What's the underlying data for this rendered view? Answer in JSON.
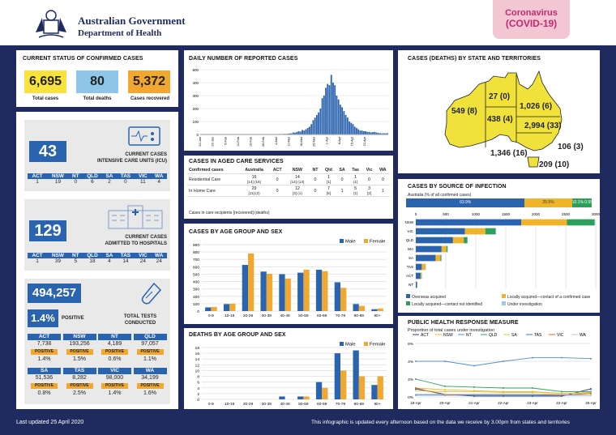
{
  "header": {
    "gov_line1": "Australian Government",
    "gov_line2": "Department of Health",
    "badge_line1": "Coronavirus",
    "badge_line2": "(COVID-19)"
  },
  "status": {
    "title": "CURRENT STATUS OF CONFIRMED CASES",
    "total_cases": "6,695",
    "total_cases_label": "Total cases",
    "total_deaths": "80",
    "total_deaths_label": "Total deaths",
    "recovered": "5,372",
    "recovered_label": "Cases recovered"
  },
  "icu": {
    "value": "43",
    "label_1": "CURRENT CASES",
    "label_2": "INTENSIVE CARE UNITS (ICU)",
    "states": [
      "ACT",
      "NSW",
      "NT",
      "QLD",
      "SA",
      "TAS",
      "VIC",
      "WA"
    ],
    "values": [
      "1",
      "19",
      "0",
      "6",
      "2",
      "0",
      "11",
      "4"
    ]
  },
  "hosp": {
    "value": "129",
    "label_1": "CURRENT CASES",
    "label_2": "ADMITTED TO HOSPITALS",
    "states": [
      "ACT",
      "NSW",
      "NT",
      "QLD",
      "SA",
      "TAS",
      "VIC",
      "WA"
    ],
    "values": [
      "1",
      "39",
      "5",
      "18",
      "4",
      "14",
      "24",
      "24"
    ]
  },
  "tests": {
    "value": "494,257",
    "positive_pct": "1.4%",
    "positive_label": "POSITIVE",
    "label_1": "TOTAL TESTS",
    "label_2": "CONDUCTED",
    "positive_tag": "POSITIVE",
    "row1": [
      {
        "state": "ACT",
        "tests": "7,738",
        "pct": "1.4%"
      },
      {
        "state": "NSW",
        "tests": "193,256",
        "pct": "1.5%"
      },
      {
        "state": "NT",
        "tests": "4,189",
        "pct": "0.6%"
      },
      {
        "state": "QLD",
        "tests": "97,057",
        "pct": "1.1%"
      }
    ],
    "row2": [
      {
        "state": "SA",
        "tests": "51,536",
        "pct": "0.8%"
      },
      {
        "state": "TAS",
        "tests": "8,282",
        "pct": "2.5%"
      },
      {
        "state": "VIC",
        "tests": "98,000",
        "pct": "1.4%"
      },
      {
        "state": "WA",
        "tests": "34,199",
        "pct": "1.6%"
      }
    ]
  },
  "aged_care": {
    "title": "CASES IN AGED CARE SERVICES",
    "headers": [
      "Confirmed cases",
      "Australia",
      "ACT",
      "NSW",
      "NT",
      "Qld",
      "SA",
      "Tas",
      "Vic",
      "WA"
    ],
    "rows": [
      {
        "label": "Residential Care",
        "vals": [
          "16",
          "0",
          "14",
          "0",
          "1",
          "0",
          "1",
          "0",
          "0"
        ],
        "sub": [
          "[14] (15)",
          "",
          "[14] (13)",
          "",
          "[1]",
          "",
          "(1)",
          "",
          ""
        ]
      },
      {
        "label": "In Home Care",
        "vals": [
          "29",
          "0",
          "12",
          "0",
          "7",
          "1",
          "5",
          "3",
          "1"
        ],
        "sub": [
          "[11] (2)",
          "",
          "[3] (1)",
          "",
          "[5]",
          "",
          "(1)",
          "[2]",
          ""
        ]
      }
    ],
    "note": "Cases in care recipients [recovered] (deaths)"
  },
  "map": {
    "title": "CASES (DEATHS) BY STATE AND TERRITORIES",
    "wa": "549 (8)",
    "nt": "27 (0)",
    "qld": "1,026 (6)",
    "sa": "438 (4)",
    "nsw": "2,994 (33)",
    "act": "106 (3)",
    "vic": "1,346 (16)",
    "tas": "209 (10)"
  },
  "source": {
    "title": "CASES BY SOURCE OF INFECTION",
    "subtitle": "Australia (% of all confirmed cases)",
    "pct1": "63.9%",
    "pct2": "25.5%",
    "pct3": "10.1% 0.5%",
    "legend": [
      "Overseas acquired",
      "Locally acquired—contact of a confirmed case",
      "Locally acquired—contact not identified",
      "Under investigation"
    ]
  },
  "response": {
    "title": "PUBLIC HEALTH RESPONSE MEASURE",
    "subtitle": "Proportion of total cases under investigation"
  },
  "footer": {
    "updated": "Last updated 25 April 2020",
    "note": "This infographic is updated every afternoon based on the data we receive by 3.00pm from states and territories"
  },
  "chart_data": [
    {
      "type": "bar",
      "title": "DAILY NUMBER OF REPORTED CASES",
      "ylim": [
        0,
        500
      ],
      "yticks": [
        0,
        100,
        200,
        300,
        400,
        500
      ],
      "x_ticks": [
        "22-Jan",
        "29-Jan",
        "5-Feb",
        "12-Feb",
        "19-Feb",
        "26-Feb",
        "4-Mar",
        "11-Mar",
        "18-Mar",
        "25-Mar",
        "1-Apr",
        "8-Apr",
        "15-Apr",
        "22-Apr"
      ],
      "values": [
        0,
        1,
        1,
        1,
        0,
        0,
        0,
        0,
        1,
        0,
        0,
        0,
        1,
        0,
        2,
        0,
        0,
        0,
        0,
        0,
        0,
        1,
        0,
        0,
        0,
        0,
        0,
        0,
        0,
        0,
        0,
        1,
        0,
        0,
        0,
        0,
        0,
        0,
        0,
        0,
        1,
        2,
        2,
        3,
        4,
        3,
        5,
        4,
        6,
        8,
        9,
        15,
        14,
        20,
        25,
        22,
        35,
        30,
        40,
        50,
        60,
        80,
        110,
        130,
        150,
        170,
        200,
        280,
        300,
        360,
        390,
        380,
        460,
        400,
        380,
        300,
        270,
        230,
        210,
        180,
        150,
        130,
        100,
        90,
        80,
        60,
        50,
        40,
        30,
        30,
        25,
        25,
        20,
        20,
        15,
        18,
        20,
        15,
        12,
        10,
        8,
        10,
        8,
        10
      ]
    },
    {
      "type": "bar",
      "title": "CASES BY AGE GROUP AND SEX",
      "categories": [
        "0-9",
        "10-19",
        "20-29",
        "30-39",
        "40-49",
        "50-59",
        "60-69",
        "70-79",
        "80-89",
        "90+"
      ],
      "ylim": [
        0,
        900
      ],
      "yticks": [
        0,
        100,
        200,
        300,
        400,
        500,
        600,
        700,
        800,
        900
      ],
      "series": [
        {
          "name": "Male",
          "color": "#2a63ae",
          "values": [
            50,
            95,
            625,
            535,
            500,
            520,
            560,
            390,
            95,
            25
          ]
        },
        {
          "name": "Female",
          "color": "#f0a830",
          "values": [
            55,
            100,
            780,
            505,
            440,
            560,
            540,
            315,
            70,
            35
          ]
        }
      ]
    },
    {
      "type": "bar",
      "title": "DEATHS BY AGE GROUP AND SEX",
      "categories": [
        "0-9",
        "10-19",
        "20-29",
        "30-39",
        "40-49",
        "50-59",
        "60-69",
        "70-79",
        "80-89",
        "90+"
      ],
      "ylim": [
        0,
        18
      ],
      "yticks": [
        0,
        2,
        4,
        6,
        8,
        10,
        12,
        14,
        16,
        18
      ],
      "series": [
        {
          "name": "Male",
          "color": "#2a63ae",
          "values": [
            0,
            0,
            0,
            0,
            1,
            1,
            6,
            16,
            17,
            5
          ]
        },
        {
          "name": "Female",
          "color": "#f0a830",
          "values": [
            0,
            0,
            0,
            0,
            0,
            1,
            4,
            10,
            8,
            8
          ]
        }
      ]
    },
    {
      "type": "bar",
      "title": "CASES BY SOURCE OF INFECTION",
      "categories": [
        "NSW",
        "VIC",
        "QLD",
        "WA",
        "SA",
        "TAS",
        "ACT",
        "NT"
      ],
      "xlim": [
        0,
        3000
      ],
      "xticks": [
        0,
        500,
        1000,
        1500,
        2000,
        2500,
        3000
      ],
      "series": [
        {
          "name": "Overseas acquired",
          "color": "#2a63ae",
          "values": [
            1760,
            820,
            620,
            430,
            330,
            100,
            80,
            20
          ]
        },
        {
          "name": "Locally acquired—contact of a confirmed case",
          "color": "#f0b428",
          "values": [
            760,
            340,
            180,
            80,
            80,
            60,
            15,
            5
          ]
        },
        {
          "name": "Locally acquired—contact not identified",
          "color": "#2ca05a",
          "values": [
            460,
            170,
            60,
            20,
            15,
            5,
            5,
            0
          ]
        },
        {
          "name": "Under investigation",
          "color": "#9fc5e8",
          "values": [
            10,
            10,
            5,
            5,
            5,
            2,
            2,
            0
          ]
        }
      ]
    },
    {
      "type": "line",
      "title": "PUBLIC HEALTH RESPONSE MEASURE",
      "x": [
        "19-Apr",
        "20-Apr",
        "21-Apr",
        "22-Apr",
        "23-Apr",
        "24-Apr",
        "25-Apr"
      ],
      "ylim": [
        0,
        6
      ],
      "yticks": [
        "0%",
        "2%",
        "4%",
        "6%"
      ],
      "series": [
        {
          "name": "ACT",
          "color": "#1f3d7a",
          "values": [
            0.9,
            0.3,
            0.1,
            0.1,
            0.1,
            0.1,
            0.9
          ]
        },
        {
          "name": "NSW",
          "color": "#f0b428",
          "values": [
            1.0,
            0.8,
            0.7,
            0.6,
            0.6,
            0.4,
            0.4
          ]
        },
        {
          "name": "NT",
          "color": "#4f8fd8",
          "values": [
            4.0,
            4.0,
            3.5,
            4.0,
            4.4,
            4.4,
            4.3
          ]
        },
        {
          "name": "QLD",
          "color": "#2ca05a",
          "values": [
            2.0,
            1.2,
            1.1,
            1.0,
            1.0,
            0.6,
            0.6
          ]
        },
        {
          "name": "SA",
          "color": "#d8c84a",
          "values": [
            0.7,
            0.6,
            0.6,
            0.5,
            0.5,
            0.4,
            0.5
          ]
        },
        {
          "name": "TAS",
          "color": "#2a7ad8",
          "values": [
            0.2,
            0.2,
            0.2,
            0.2,
            0.2,
            0.2,
            0.2
          ]
        },
        {
          "name": "VIC",
          "color": "#d86a2a",
          "values": [
            1.0,
            0.2,
            0.3,
            0.3,
            0.3,
            0.2,
            0.4
          ]
        },
        {
          "name": "WA",
          "color": "#c0c0c0",
          "values": [
            0.3,
            0.3,
            0.3,
            0.3,
            0.3,
            0.3,
            0.2
          ]
        }
      ]
    }
  ]
}
